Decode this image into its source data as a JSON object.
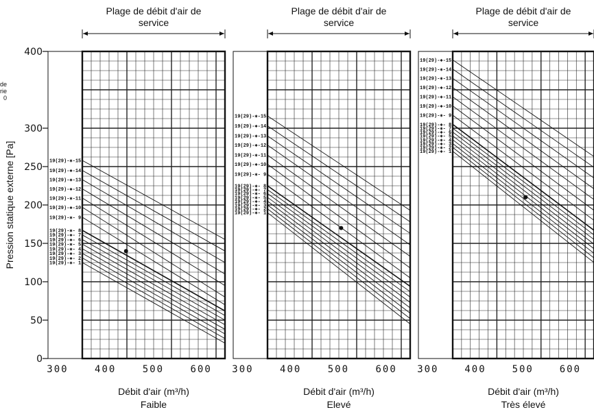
{
  "chart_data": {
    "type": "line",
    "ylabel": "Pression statique externe [Pa]",
    "ylim": [
      0,
      400
    ],
    "yticks": [
      "0",
      "50",
      "100",
      "150",
      "200",
      "250",
      "300",
      "400"
    ],
    "side_note": [
      "ur de",
      "erie",
      "0"
    ],
    "panels": [
      {
        "title": "Plage de débit d'air de service",
        "xlabel": "Débit d'air (m³/h)",
        "mode": "Faible",
        "xlim": [
          280,
          650
        ],
        "xticks": [
          "300",
          "400",
          "500",
          "600"
        ],
        "service_range": [
          340,
          650
        ],
        "marker": {
          "x": 435,
          "y": 140
        },
        "curves": [
          {
            "name": "19(29)-✱- 1",
            "x": [
              340,
              650
            ],
            "y": [
              125,
              20
            ]
          },
          {
            "name": "19(29)-✱- 2",
            "x": [
              340,
              650
            ],
            "y": [
              131,
              26
            ]
          },
          {
            "name": "19(29)-✱- 3",
            "x": [
              340,
              650
            ],
            "y": [
              137,
              32
            ]
          },
          {
            "name": "19(29)-✱- 4",
            "x": [
              340,
              650
            ],
            "y": [
              143,
              38
            ]
          },
          {
            "name": "19(29)-✱- 5",
            "x": [
              340,
              650
            ],
            "y": [
              149,
              44
            ]
          },
          {
            "name": "19(29)-✱- 6",
            "x": [
              340,
              650
            ],
            "y": [
              155,
              50
            ]
          },
          {
            "name": "19(29)-✱- 7",
            "x": [
              340,
              650
            ],
            "y": [
              161,
              56
            ]
          },
          {
            "name": "19(29)-✱- 8",
            "x": [
              340,
              650
            ],
            "y": [
              167,
              62
            ]
          },
          {
            "name": "19(29)-✱- 9",
            "x": [
              340,
              650
            ],
            "y": [
              184,
              70
            ]
          },
          {
            "name": "19(29)-✱-10",
            "x": [
              340,
              650
            ],
            "y": [
              197,
              80
            ]
          },
          {
            "name": "19(29)-✱-11",
            "x": [
              340,
              650
            ],
            "y": [
              209,
              95
            ]
          },
          {
            "name": "19(29)-✱-12",
            "x": [
              340,
              650
            ],
            "y": [
              221,
              110
            ]
          },
          {
            "name": "19(29)-✱-13",
            "x": [
              340,
              650
            ],
            "y": [
              233,
              125
            ]
          },
          {
            "name": "19(29)-✱-14",
            "x": [
              340,
              650
            ],
            "y": [
              245,
              140
            ]
          },
          {
            "name": "19(29)-✱-15",
            "x": [
              340,
              650
            ],
            "y": [
              258,
              155
            ]
          }
        ]
      },
      {
        "title": "Plage de débit d'air de service",
        "xlabel": "Débit d'air (m³/h)",
        "mode": "Elevé",
        "xlim": [
          280,
          650
        ],
        "xticks": [
          "300",
          "400",
          "500",
          "600"
        ],
        "service_range": [
          340,
          650
        ],
        "marker": {
          "x": 500,
          "y": 170
        },
        "curves": [
          {
            "name": "19(29)-✱- 1",
            "x": [
              340,
              650
            ],
            "y": [
              190,
              45
            ]
          },
          {
            "name": "19(29)-✱- 2",
            "x": [
              340,
              650
            ],
            "y": [
              195,
              52
            ]
          },
          {
            "name": "19(29)-✱- 3",
            "x": [
              340,
              650
            ],
            "y": [
              200,
              59
            ]
          },
          {
            "name": "19(29)-✱- 4",
            "x": [
              340,
              650
            ],
            "y": [
              205,
              66
            ]
          },
          {
            "name": "19(29)-✱- 5",
            "x": [
              340,
              650
            ],
            "y": [
              210,
              73
            ]
          },
          {
            "name": "19(29)-✱- 6",
            "x": [
              340,
              650
            ],
            "y": [
              215,
              80
            ]
          },
          {
            "name": "19(29)-✱- 7",
            "x": [
              340,
              650
            ],
            "y": [
              220,
              87
            ]
          },
          {
            "name": "19(29)-✱- 8",
            "x": [
              340,
              650
            ],
            "y": [
              225,
              94
            ]
          },
          {
            "name": "19(29)-✱- 9",
            "x": [
              340,
              650
            ],
            "y": [
              240,
              105
            ]
          },
          {
            "name": "19(29)-✱-10",
            "x": [
              340,
              650
            ],
            "y": [
              253,
              118
            ]
          },
          {
            "name": "19(29)-✱-11",
            "x": [
              340,
              650
            ],
            "y": [
              265,
              133
            ]
          },
          {
            "name": "19(29)-✱-12",
            "x": [
              340,
              650
            ],
            "y": [
              278,
              148
            ]
          },
          {
            "name": "19(29)-✱-13",
            "x": [
              340,
              650
            ],
            "y": [
              290,
              163
            ]
          },
          {
            "name": "19(29)-✱-14",
            "x": [
              340,
              650
            ],
            "y": [
              303,
              178
            ]
          },
          {
            "name": "19(29)-✱-15",
            "x": [
              340,
              650
            ],
            "y": [
              316,
              193
            ]
          }
        ]
      },
      {
        "title": "Plage de débit d'air de service",
        "xlabel": "Débit d'air (m³/h)",
        "mode": "Très élevé",
        "xlim": [
          280,
          650
        ],
        "xticks": [
          "300",
          "400",
          "500",
          "600"
        ],
        "service_range": [
          340,
          650
        ],
        "marker": {
          "x": 500,
          "y": 210
        },
        "curves": [
          {
            "name": "19(29)-✱- 1",
            "x": [
              340,
              650
            ],
            "y": [
              270,
              125
            ]
          },
          {
            "name": "19(29)-✱- 2",
            "x": [
              340,
              650
            ],
            "y": [
              275,
              131
            ]
          },
          {
            "name": "19(29)-✱- 3",
            "x": [
              340,
              650
            ],
            "y": [
              280,
              137
            ]
          },
          {
            "name": "19(29)-✱- 4",
            "x": [
              340,
              650
            ],
            "y": [
              285,
              143
            ]
          },
          {
            "name": "19(29)-✱- 5",
            "x": [
              340,
              650
            ],
            "y": [
              290,
              149
            ]
          },
          {
            "name": "19(29)-✱- 6",
            "x": [
              340,
              650
            ],
            "y": [
              295,
              155
            ]
          },
          {
            "name": "19(29)-✱- 7",
            "x": [
              340,
              650
            ],
            "y": [
              300,
              161
            ]
          },
          {
            "name": "19(29)-✱- 8",
            "x": [
              340,
              650
            ],
            "y": [
              305,
              167
            ]
          },
          {
            "name": "19(29)-✱- 9",
            "x": [
              340,
              650
            ],
            "y": [
              317,
              180
            ]
          },
          {
            "name": "19(29)-✱-10",
            "x": [
              340,
              650
            ],
            "y": [
              329,
              193
            ]
          },
          {
            "name": "19(29)-✱-11",
            "x": [
              340,
              650
            ],
            "y": [
              341,
              207
            ]
          },
          {
            "name": "19(29)-✱-12",
            "x": [
              340,
              650
            ],
            "y": [
              353,
              221
            ]
          },
          {
            "name": "19(29)-✱-13",
            "x": [
              340,
              650
            ],
            "y": [
              365,
              235
            ]
          },
          {
            "name": "19(29)-✱-14",
            "x": [
              340,
              650
            ],
            "y": [
              377,
              249
            ]
          },
          {
            "name": "19(29)-✱-15",
            "x": [
              340,
              650
            ],
            "y": [
              389,
              263
            ]
          }
        ]
      }
    ]
  }
}
